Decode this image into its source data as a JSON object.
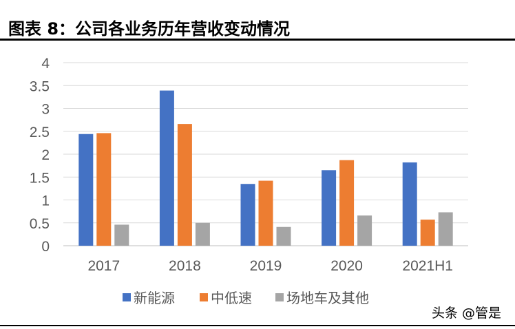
{
  "figure": {
    "title": "图表 8：公司各业务历年营收变动情况",
    "watermark": "头条 @管是"
  },
  "chart_data": {
    "type": "bar",
    "categories": [
      "2017",
      "2018",
      "2019",
      "2020",
      "2021H1"
    ],
    "series": [
      {
        "name": "新能源",
        "color": "#4472C4",
        "values": [
          2.44,
          3.39,
          1.35,
          1.65,
          1.82
        ]
      },
      {
        "name": "中低速",
        "color": "#ED7D31",
        "values": [
          2.46,
          2.66,
          1.42,
          1.87,
          0.57
        ]
      },
      {
        "name": "场地车及其他",
        "color": "#A5A5A5",
        "values": [
          0.46,
          0.5,
          0.41,
          0.66,
          0.73
        ]
      }
    ],
    "yticks": [
      "0",
      "0.5",
      "1",
      "1.5",
      "2",
      "2.5",
      "3",
      "3.5",
      "4"
    ],
    "ylim": [
      0,
      4
    ],
    "grid": true,
    "legend": "bottom"
  }
}
